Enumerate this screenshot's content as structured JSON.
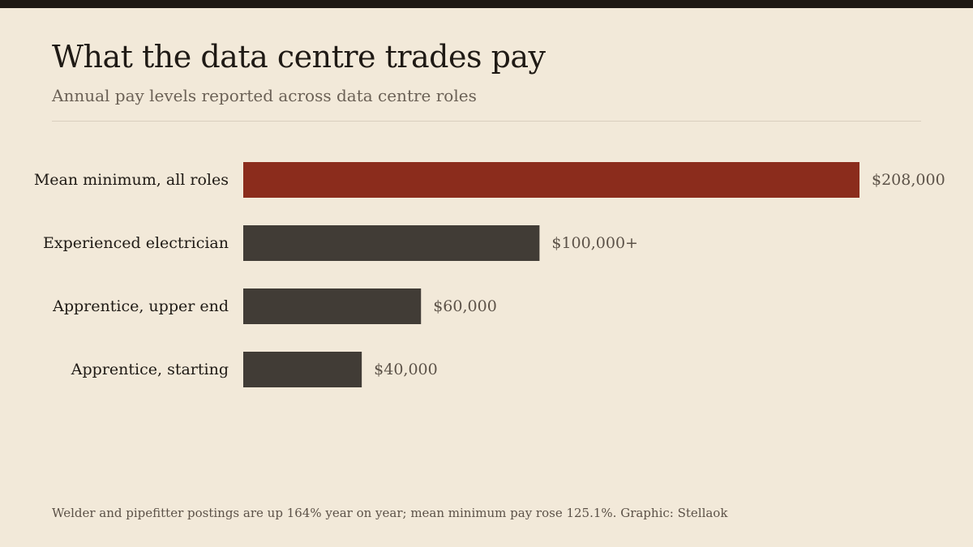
{
  "header": {
    "title": "What the data centre trades pay",
    "subtitle": "Annual pay levels reported across data centre roles"
  },
  "footer": {
    "note": "Welder and pipefitter postings are up 164% year on year; mean minimum pay rose 125.1%. Graphic: Stellaok"
  },
  "colors": {
    "highlight": "#8b2c1c",
    "bar": "#413c36",
    "background": "#f2e9d9",
    "top_bar": "#1f1a15"
  },
  "chart_data": {
    "type": "bar",
    "orientation": "horizontal",
    "categories": [
      "Mean minimum, all roles",
      "Experienced electrician",
      "Apprentice, upper end",
      "Apprentice, starting"
    ],
    "values": [
      208000,
      100000,
      60000,
      40000
    ],
    "value_labels": [
      "$208,000",
      "$100,000+",
      "$60,000",
      "$40,000"
    ],
    "highlight_index": 0,
    "xlim": [
      0,
      208000
    ],
    "grid": false,
    "axes_visible": false
  }
}
